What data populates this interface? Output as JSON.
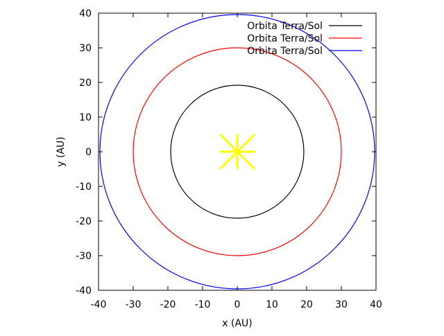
{
  "chart_data": {
    "type": "line",
    "title": "",
    "xlabel": "x (AU)",
    "ylabel": "y (AU)",
    "xlim": [
      -40,
      40
    ],
    "ylim": [
      -40,
      40
    ],
    "xticks": [
      -40,
      -30,
      -20,
      -10,
      0,
      10,
      20,
      30,
      40
    ],
    "yticks": [
      -40,
      -30,
      -20,
      -10,
      0,
      10,
      20,
      30,
      40
    ],
    "grid": false,
    "legend_position": "top-right",
    "series": [
      {
        "name": "Orbita Terra/Sol",
        "shape": "circle",
        "center": [
          0,
          0
        ],
        "radius": 19.2,
        "color": "#000000"
      },
      {
        "name": "Orbita Terra/Sol",
        "shape": "circle",
        "center": [
          0,
          0
        ],
        "radius": 30.0,
        "color": "#ff0000"
      },
      {
        "name": "Orbita Terra/Sol",
        "shape": "circle",
        "center": [
          0,
          0
        ],
        "radius": 39.6,
        "color": "#0000ff"
      }
    ],
    "sun_marker": {
      "x": 0,
      "y": 0,
      "half_extent": 5,
      "color": "#ffff00"
    }
  }
}
